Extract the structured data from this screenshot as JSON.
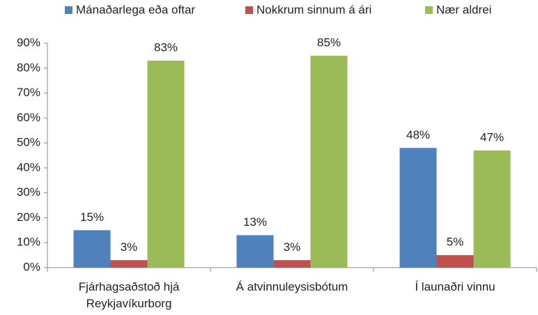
{
  "chart_data": {
    "type": "bar",
    "categories": [
      "Fjárhagsaðstoð hjá Reykjavíkurborg",
      "Á atvinnuleysisbótum",
      "Í launaðri vinnu"
    ],
    "series": [
      {
        "name": "Mánaðarlega eða oftar",
        "color": "#4f81bd",
        "values": [
          15,
          13,
          48
        ],
        "value_labels": [
          "15%",
          "13%",
          "48%"
        ]
      },
      {
        "name": "Nokkrum sinnum á ári",
        "color": "#c0504d",
        "values": [
          3,
          3,
          5
        ],
        "value_labels": [
          "3%",
          "3%",
          "5%"
        ]
      },
      {
        "name": "Nær aldrei",
        "color": "#9bbb59",
        "values": [
          83,
          85,
          47
        ],
        "value_labels": [
          "83%",
          "85%",
          "47%"
        ]
      }
    ],
    "ylim": [
      0,
      90
    ],
    "yticks": [
      {
        "value": 0,
        "label": "0%"
      },
      {
        "value": 10,
        "label": "10%"
      },
      {
        "value": 20,
        "label": "20%"
      },
      {
        "value": 30,
        "label": "30%"
      },
      {
        "value": 40,
        "label": "40%"
      },
      {
        "value": 50,
        "label": "50%"
      },
      {
        "value": 60,
        "label": "60%"
      },
      {
        "value": 70,
        "label": "70%"
      },
      {
        "value": 80,
        "label": "80%"
      },
      {
        "value": 90,
        "label": "90%"
      }
    ],
    "legend": "top",
    "grid": false
  }
}
